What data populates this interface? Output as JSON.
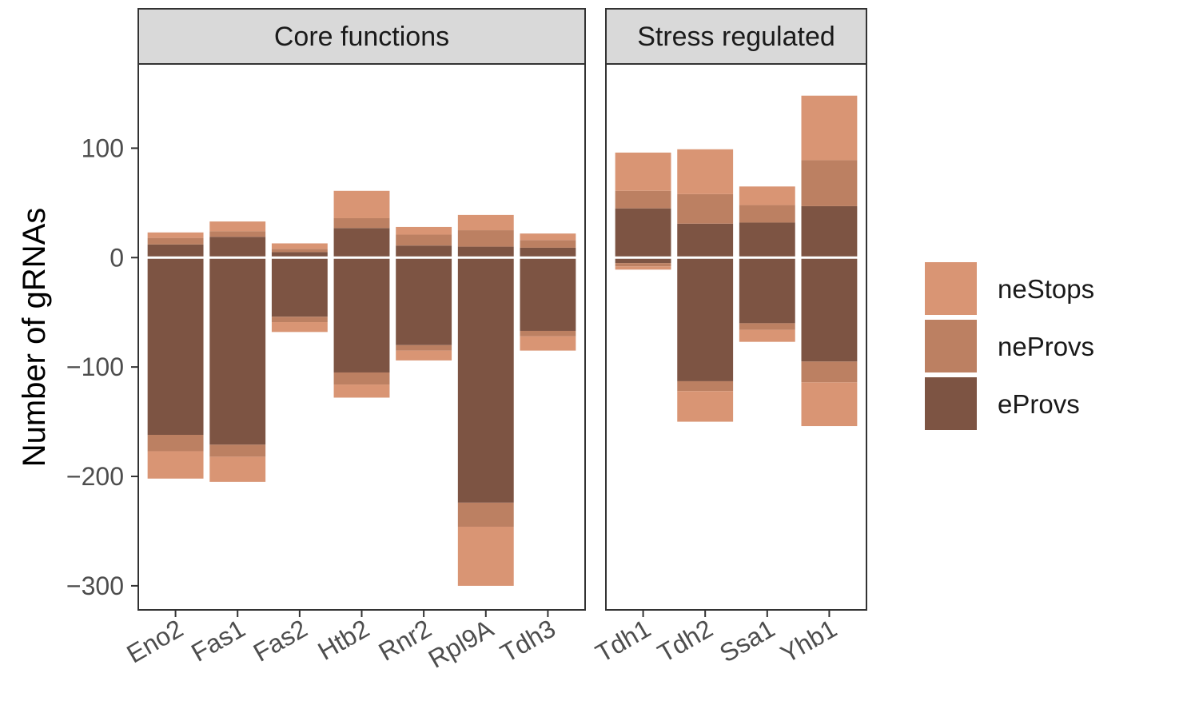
{
  "chart_data": {
    "type": "bar",
    "stacked": true,
    "diverging": true,
    "ylabel": "Number of gRNAs",
    "ylim": [
      -322,
      177
    ],
    "yticks": [
      100,
      0,
      -100,
      -200,
      -300
    ],
    "ytick_labels": [
      "100",
      "0",
      "−100",
      "−200",
      "−300"
    ],
    "grid": false,
    "legend_position": "right",
    "series_order": [
      "eProvs",
      "neProvs",
      "neStops"
    ],
    "colors": {
      "eProvs": "#7d5443",
      "neProvs": "#bc8062",
      "neStops": "#d99574",
      "zero_line": "#ffffff",
      "strip_bg": "#d9d9d9",
      "panel_border": "#333333"
    },
    "legend": [
      {
        "key": "neStops",
        "label": "neStops"
      },
      {
        "key": "neProvs",
        "label": "neProvs"
      },
      {
        "key": "eProvs",
        "label": "eProvs"
      }
    ],
    "panels": [
      {
        "title": "Core functions",
        "categories": [
          "Eno2",
          "Fas1",
          "Fas2",
          "Htb2",
          "Rnr2",
          "Rpl9A",
          "Tdh3"
        ],
        "positive": {
          "eProvs": [
            12,
            19,
            5,
            27,
            11,
            10,
            9
          ],
          "neProvs": [
            6,
            5,
            3,
            9,
            10,
            15,
            7
          ],
          "neStops": [
            5,
            9,
            5,
            25,
            7,
            14,
            6
          ]
        },
        "negative": {
          "eProvs": [
            -162,
            -171,
            -54,
            -105,
            -80,
            -224,
            -67
          ],
          "neProvs": [
            -15,
            -11,
            -5,
            -11,
            -5,
            -22,
            -5
          ],
          "neStops": [
            -25,
            -23,
            -9,
            -12,
            -9,
            -54,
            -13
          ]
        }
      },
      {
        "title": "Stress regulated",
        "categories": [
          "Tdh1",
          "Tdh2",
          "Ssa1",
          "Yhb1"
        ],
        "positive": {
          "eProvs": [
            45,
            31,
            32,
            47
          ],
          "neProvs": [
            16,
            27,
            16,
            42
          ],
          "neStops": [
            35,
            41,
            17,
            59
          ]
        },
        "negative": {
          "eProvs": [
            -5,
            -113,
            -60,
            -95
          ],
          "neProvs": [
            -3,
            -9,
            -6,
            -19
          ],
          "neStops": [
            -3,
            -28,
            -11,
            -40
          ]
        }
      }
    ]
  }
}
